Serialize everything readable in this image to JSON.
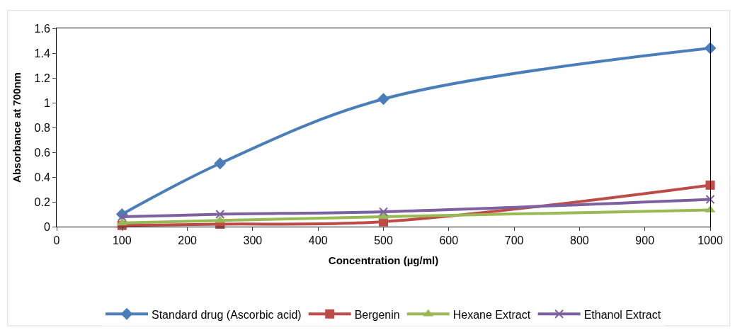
{
  "chart_data": {
    "type": "line",
    "xlabel": "Concentration (µg/ml)",
    "ylabel": "Absorbance at 700nm",
    "x": [
      100,
      250,
      500,
      1000
    ],
    "series": [
      {
        "name": "Standard drug (Ascorbic acid)",
        "color": "#4a7ebb",
        "marker": "diamond",
        "values": [
          0.1,
          0.51,
          1.03,
          1.44
        ]
      },
      {
        "name": "Bergenin",
        "color": "#be4b48",
        "marker": "square",
        "values": [
          0.01,
          0.02,
          0.04,
          0.335
        ]
      },
      {
        "name": "Hexane Extract",
        "color": "#98b954",
        "marker": "triangle",
        "values": [
          0.03,
          0.05,
          0.08,
          0.135
        ]
      },
      {
        "name": "Ethanol Extract",
        "color": "#7d60a0",
        "marker": "cross",
        "values": [
          0.08,
          0.1,
          0.12,
          0.22
        ]
      }
    ],
    "xlim": [
      0,
      1000
    ],
    "xticks": [
      0,
      100,
      200,
      300,
      400,
      500,
      600,
      700,
      800,
      900,
      1000
    ],
    "ylim": [
      0,
      1.6
    ],
    "yticks": [
      0,
      0.2,
      0.4,
      0.6,
      0.8,
      1,
      1.2,
      1.4,
      1.6
    ],
    "grid": false,
    "legend": "bottom",
    "line_style": "solid"
  }
}
